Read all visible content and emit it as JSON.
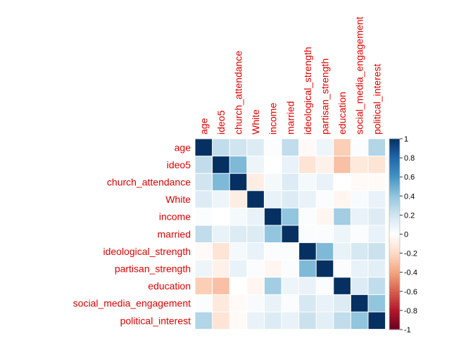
{
  "chart_data": {
    "type": "heatmap",
    "title": "",
    "variables": [
      "age",
      "ideo5",
      "church_attendance",
      "White",
      "income",
      "married",
      "ideological_strength",
      "partisan_strength",
      "education",
      "social_media_engagement",
      "political_interest"
    ],
    "matrix": [
      [
        1.0,
        0.25,
        0.2,
        0.15,
        0.02,
        0.25,
        -0.03,
        0.08,
        -0.25,
        0.02,
        0.3
      ],
      [
        0.25,
        1.0,
        0.45,
        0.08,
        0.0,
        0.1,
        -0.15,
        -0.08,
        -0.3,
        -0.12,
        -0.15
      ],
      [
        0.2,
        0.45,
        1.0,
        -0.1,
        0.05,
        0.15,
        0.05,
        0.1,
        0.0,
        -0.03,
        -0.03
      ],
      [
        0.15,
        0.08,
        -0.1,
        1.0,
        0.1,
        0.15,
        0.1,
        0.02,
        -0.05,
        0.03,
        0.1
      ],
      [
        0.02,
        0.0,
        0.05,
        0.1,
        1.0,
        0.4,
        0.02,
        -0.05,
        0.35,
        0.1,
        0.15
      ],
      [
        0.25,
        0.1,
        0.15,
        0.15,
        0.4,
        1.0,
        0.02,
        0.02,
        0.08,
        0.02,
        0.1
      ],
      [
        -0.03,
        -0.15,
        0.05,
        0.1,
        0.02,
        0.02,
        1.0,
        0.45,
        0.1,
        0.18,
        0.22
      ],
      [
        0.08,
        -0.08,
        0.1,
        0.02,
        -0.05,
        0.02,
        0.45,
        1.0,
        0.02,
        0.1,
        0.12
      ],
      [
        -0.25,
        -0.3,
        0.0,
        -0.05,
        0.35,
        0.08,
        0.1,
        0.02,
        1.0,
        0.15,
        0.25
      ],
      [
        0.02,
        -0.12,
        -0.03,
        0.03,
        0.1,
        0.02,
        0.18,
        0.1,
        0.15,
        1.0,
        0.4
      ],
      [
        0.3,
        -0.15,
        -0.03,
        0.1,
        0.15,
        0.1,
        0.22,
        0.12,
        0.25,
        0.4,
        1.0
      ]
    ],
    "color_scale": {
      "range": [
        -1,
        1
      ],
      "ticks": [
        "-1",
        "-0.8",
        "-0.6",
        "-0.4",
        "-0.2",
        "0",
        "0.2",
        "0.4",
        "0.6",
        "0.8",
        "1"
      ],
      "colors": [
        "#67001f",
        "#b2182b",
        "#d6604d",
        "#f4a582",
        "#fddbc7",
        "#ffffff",
        "#d1e5f0",
        "#92c5de",
        "#4393c3",
        "#2166ac",
        "#053061"
      ]
    },
    "legend_placement": "right",
    "grid": true
  }
}
